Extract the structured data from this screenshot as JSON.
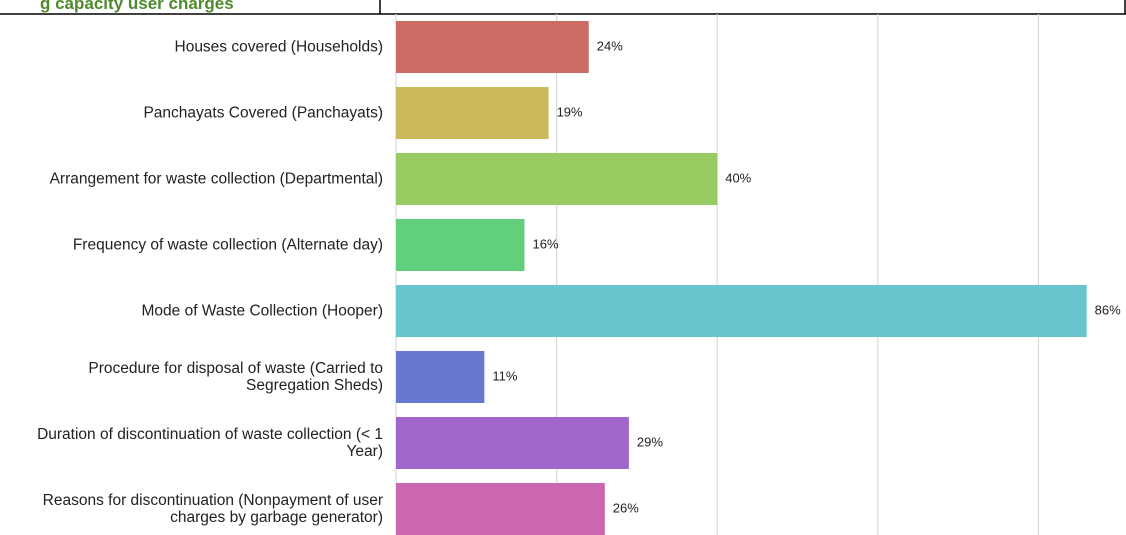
{
  "chart_data": {
    "type": "barh",
    "title": "g capacity user charges",
    "categories": [
      "Houses covered (Households)",
      "Panchayats Covered (Panchayats)",
      "Arrangement for waste collection (Departmental)",
      "Frequency of waste collection (Alternate day)",
      "Mode of Waste Collection (Hooper)",
      "Procedure for disposal of waste (Carried to Segregation Sheds)",
      "Duration of discontinuation of waste collection (< 1 Year)",
      "Reasons for discontinuation (Nonpayment of user charges by garbage generator)"
    ],
    "values": [
      24,
      19,
      40,
      16,
      86,
      11,
      29,
      26
    ],
    "value_labels": [
      "24%",
      "19%",
      "40%",
      "16%",
      "86%",
      "11%",
      "29%",
      "26%"
    ],
    "colors": [
      "#cc6b63",
      "#c9b95a",
      "#96cc62",
      "#62cf7d",
      "#68c5cd",
      "#6878cf",
      "#a066cc",
      "#cb66b0"
    ],
    "xlim": [
      0,
      90.9
    ],
    "xticks": [
      0,
      20,
      40,
      60,
      80
    ],
    "grid": true
  }
}
